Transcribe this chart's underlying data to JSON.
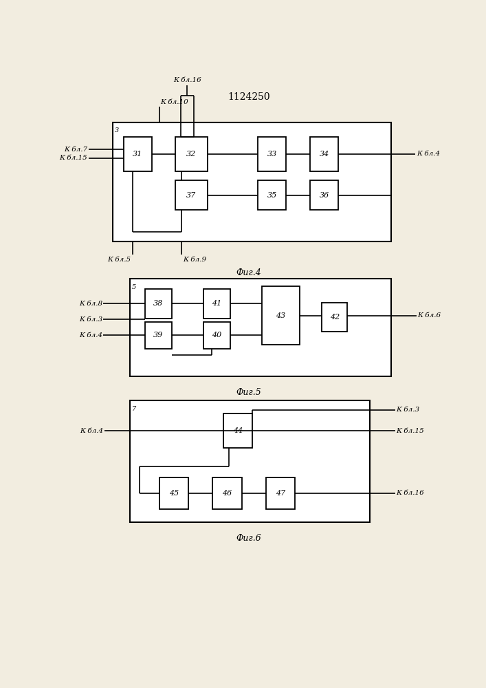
{
  "title": "1124250",
  "bg_color": "#f2ede0",
  "line_color": "#000000",
  "fig4_caption": "Фиг.4",
  "fig5_caption": "Фиг.5",
  "fig6_caption": "Фиг.6"
}
